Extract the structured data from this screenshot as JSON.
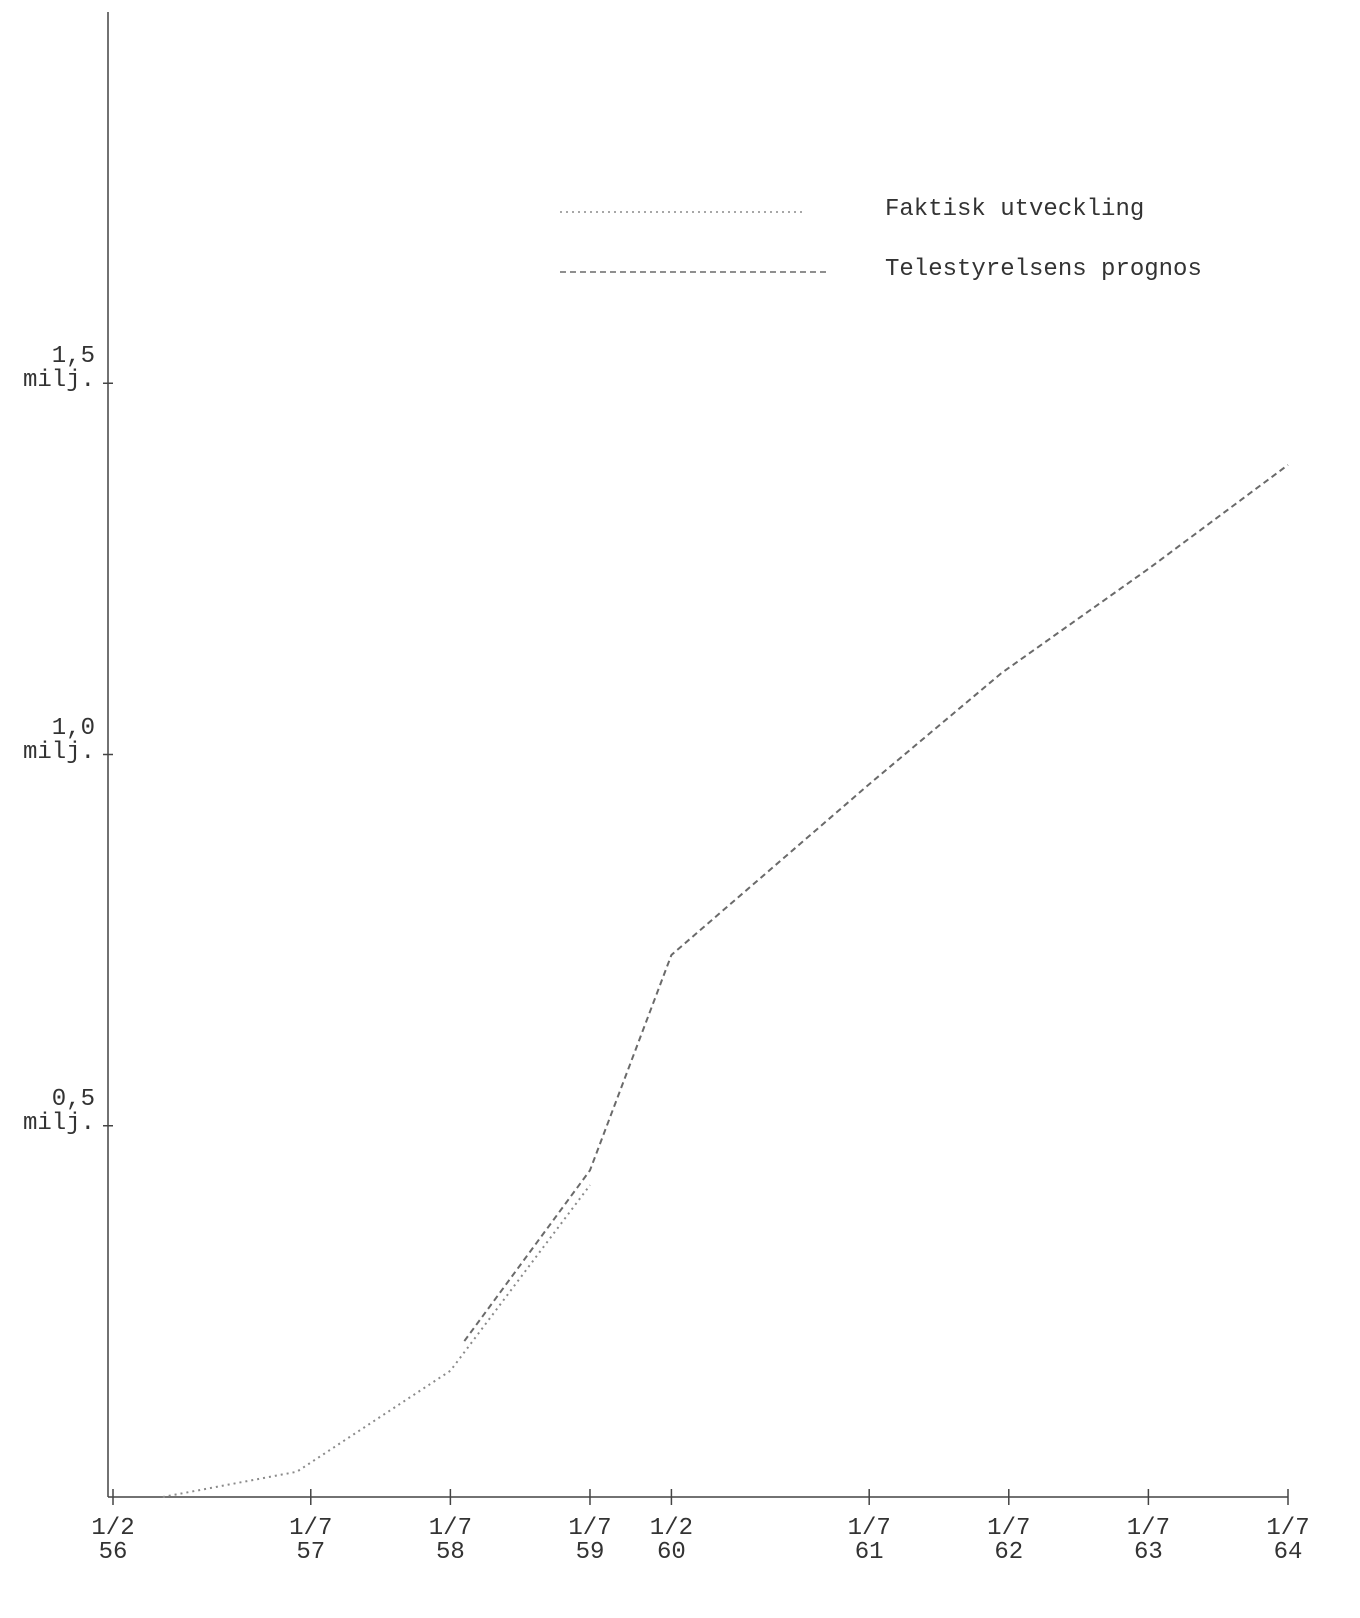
{
  "chart_data": {
    "type": "line",
    "x_type": "decimal-year",
    "xlim": [
      56.0833,
      64.5
    ],
    "xticks": [
      {
        "value": 56.0833,
        "label": "1/2\n56"
      },
      {
        "value": 57.5,
        "label": "1/7\n57"
      },
      {
        "value": 58.5,
        "label": "1/7\n58"
      },
      {
        "value": 59.5,
        "label": "1/7\n59"
      },
      {
        "value": 60.0833,
        "label": "1/2\n60"
      },
      {
        "value": 61.5,
        "label": "1/7\n61"
      },
      {
        "value": 62.5,
        "label": "1/7\n62"
      },
      {
        "value": 63.5,
        "label": "1/7\n63"
      },
      {
        "value": 64.5,
        "label": "1/7\n64"
      }
    ],
    "ylim": [
      0,
      2.0
    ],
    "yticks": [
      {
        "value": 0.5,
        "label": "0,5\nmilj."
      },
      {
        "value": 1.0,
        "label": "1,0\nmilj."
      },
      {
        "value": 1.5,
        "label": "1,5\nmilj."
      }
    ],
    "grid": false,
    "legend": "upper right",
    "series": [
      {
        "name": "Faktisk utveckling",
        "color": "#8a8a8a",
        "dash": "dotted",
        "x": [
          56.44,
          57.4,
          58.5,
          59.5
        ],
        "values": [
          0.0,
          0.034,
          0.17,
          0.42
        ]
      },
      {
        "name": "Telestyrelsens prognos",
        "color": "#6a6a6a",
        "dash": "dashed",
        "x": [
          58.6,
          59.5,
          60.0833,
          61.5,
          62.45,
          63.5,
          64.5
        ],
        "values": [
          0.21,
          0.44,
          0.73,
          0.96,
          1.11,
          1.25,
          1.39
        ]
      }
    ]
  }
}
